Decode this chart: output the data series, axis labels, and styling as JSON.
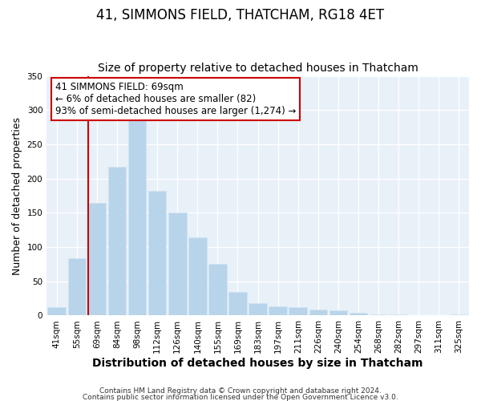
{
  "title": "41, SIMMONS FIELD, THATCHAM, RG18 4ET",
  "subtitle": "Size of property relative to detached houses in Thatcham",
  "xlabel": "Distribution of detached houses by size in Thatcham",
  "ylabel": "Number of detached properties",
  "bar_labels": [
    "41sqm",
    "55sqm",
    "69sqm",
    "84sqm",
    "98sqm",
    "112sqm",
    "126sqm",
    "140sqm",
    "155sqm",
    "169sqm",
    "183sqm",
    "197sqm",
    "211sqm",
    "226sqm",
    "240sqm",
    "254sqm",
    "268sqm",
    "282sqm",
    "297sqm",
    "311sqm",
    "325sqm"
  ],
  "bar_values": [
    12,
    84,
    165,
    217,
    287,
    182,
    150,
    114,
    75,
    35,
    18,
    14,
    12,
    9,
    7,
    4,
    2,
    2,
    1,
    1,
    2
  ],
  "bar_color": "#b8d4ea",
  "bar_edge_color": "#d0e4f4",
  "highlight_line_color": "#cc0000",
  "annotation_title": "41 SIMMONS FIELD: 69sqm",
  "annotation_line1": "← 6% of detached houses are smaller (82)",
  "annotation_line2": "93% of semi-detached houses are larger (1,274) →",
  "annotation_box_color": "#ffffff",
  "annotation_box_edge": "#cc0000",
  "ylim": [
    0,
    350
  ],
  "yticks": [
    0,
    50,
    100,
    150,
    200,
    250,
    300,
    350
  ],
  "footer1": "Contains HM Land Registry data © Crown copyright and database right 2024.",
  "footer2": "Contains public sector information licensed under the Open Government Licence v3.0.",
  "background_color": "#ffffff",
  "plot_bg_color": "#e8f0f8",
  "grid_color": "#ffffff",
  "title_fontsize": 12,
  "subtitle_fontsize": 10,
  "xlabel_fontsize": 10,
  "ylabel_fontsize": 9,
  "tick_fontsize": 7.5,
  "footer_fontsize": 6.5,
  "annotation_fontsize": 8.5
}
